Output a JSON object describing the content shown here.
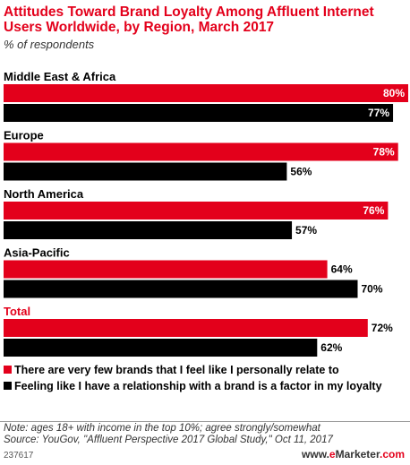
{
  "chart_data": {
    "type": "bar",
    "orientation": "horizontal",
    "title": "Attitudes Toward Brand Loyalty Among Affluent Internet Users Worldwide, by Region, March 2017",
    "subtitle": "% of respondents",
    "categories": [
      "Middle East & Africa",
      "Europe",
      "North America",
      "Asia-Pacific",
      "Total"
    ],
    "highlight_category": "Total",
    "series": [
      {
        "name": "There are very few brands that I feel like I personally relate to",
        "color": "#e3001b",
        "values": [
          80,
          78,
          76,
          64,
          72
        ],
        "labels": [
          "80%",
          "78%",
          "76%",
          "64%",
          "72%"
        ]
      },
      {
        "name": "Feeling like I have a relationship with a brand is a factor in my loyalty",
        "color": "#000000",
        "values": [
          77,
          56,
          57,
          70,
          62
        ],
        "labels": [
          "77%",
          "56%",
          "57%",
          "70%",
          "62%"
        ]
      }
    ],
    "xlim": [
      0,
      80
    ],
    "grid": false,
    "legend": "bottom"
  },
  "notes": {
    "line1": "Note: ages 18+ with income in the top 10%; agree strongly/somewhat",
    "line2": "Source: YouGov, \"Affluent Perspective 2017 Global Study,\" Oct 11, 2017"
  },
  "footer": {
    "chart_id": "237617",
    "brand_prefix": "www.",
    "brand_e": "e",
    "brand_name": "Marketer",
    "brand_suffix": ".com"
  }
}
